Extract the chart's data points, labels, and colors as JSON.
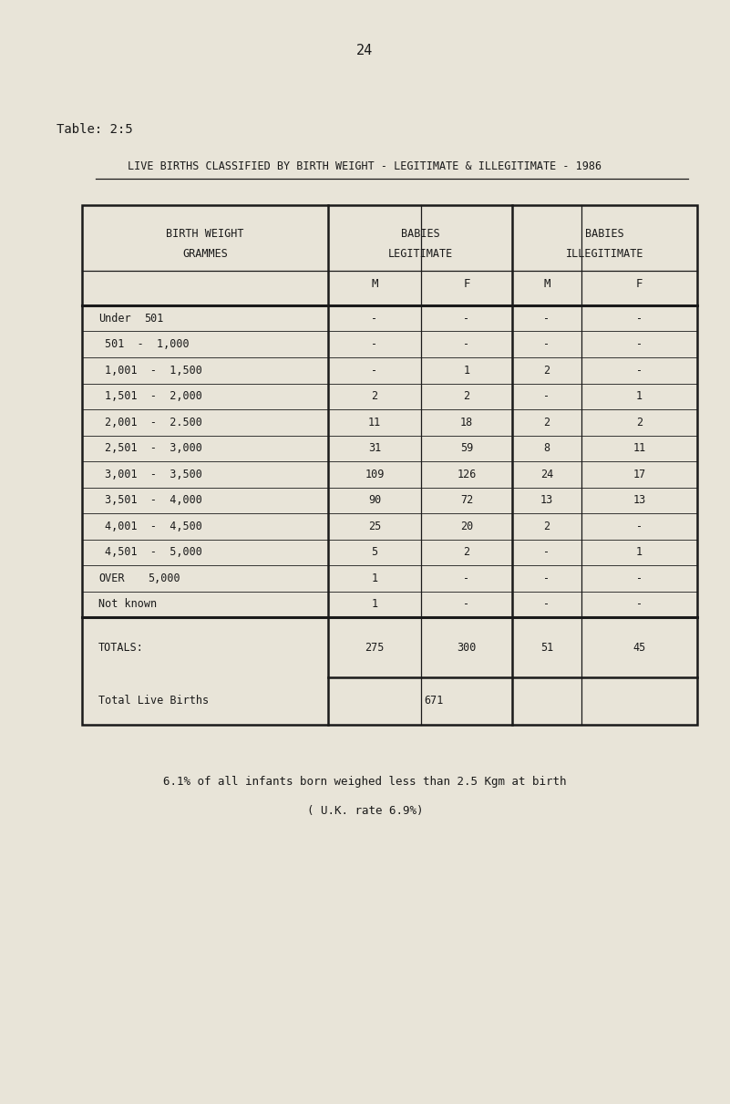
{
  "page_number": "24",
  "table_label": "Table: 2:5",
  "title": "LIVE BIRTHS CLASSIFIED BY BIRTH WEIGHT - LEGITIMATE & ILLEGITIMATE - 1986",
  "bg_color": "#e8e4d8",
  "rows": [
    [
      "Under  501",
      "-",
      "-",
      "-",
      "-"
    ],
    [
      "501  -  1,000",
      "-",
      "-",
      "-",
      "-"
    ],
    [
      "1,001  -  1,500",
      "-",
      "1",
      "2",
      "-"
    ],
    [
      "1,501  -  2,000",
      "2",
      "2",
      "-",
      "1"
    ],
    [
      "2,001  -  2.500",
      "11",
      "18",
      "2",
      "2"
    ],
    [
      "2,501  -  3,000",
      "31",
      "59",
      "8",
      "11"
    ],
    [
      "3,001  -  3,500",
      "109",
      "126",
      "24",
      "17"
    ],
    [
      "3,501  -  4,000",
      "90",
      "72",
      "13",
      "13"
    ],
    [
      "4,001  -  4,500",
      "25",
      "20",
      "2",
      "-"
    ],
    [
      "4,501  -  5,000",
      "5",
      "2",
      "-",
      "1"
    ],
    [
      "OVER    5,000",
      "1",
      "-",
      "-",
      "-"
    ],
    [
      "Not known",
      "1",
      "-",
      "-",
      "-"
    ]
  ],
  "totals_row": [
    "TOTALS:",
    "275",
    "300",
    "51",
    "45"
  ],
  "total_live_births_label": "Total Live Births",
  "total_live_births_value": "671",
  "footnote1": "6.1% of all infants born weighed less than 2.5 Kgm at birth",
  "footnote2": "( U.K. rate 6.9%)",
  "text_color": "#1a1a1a"
}
